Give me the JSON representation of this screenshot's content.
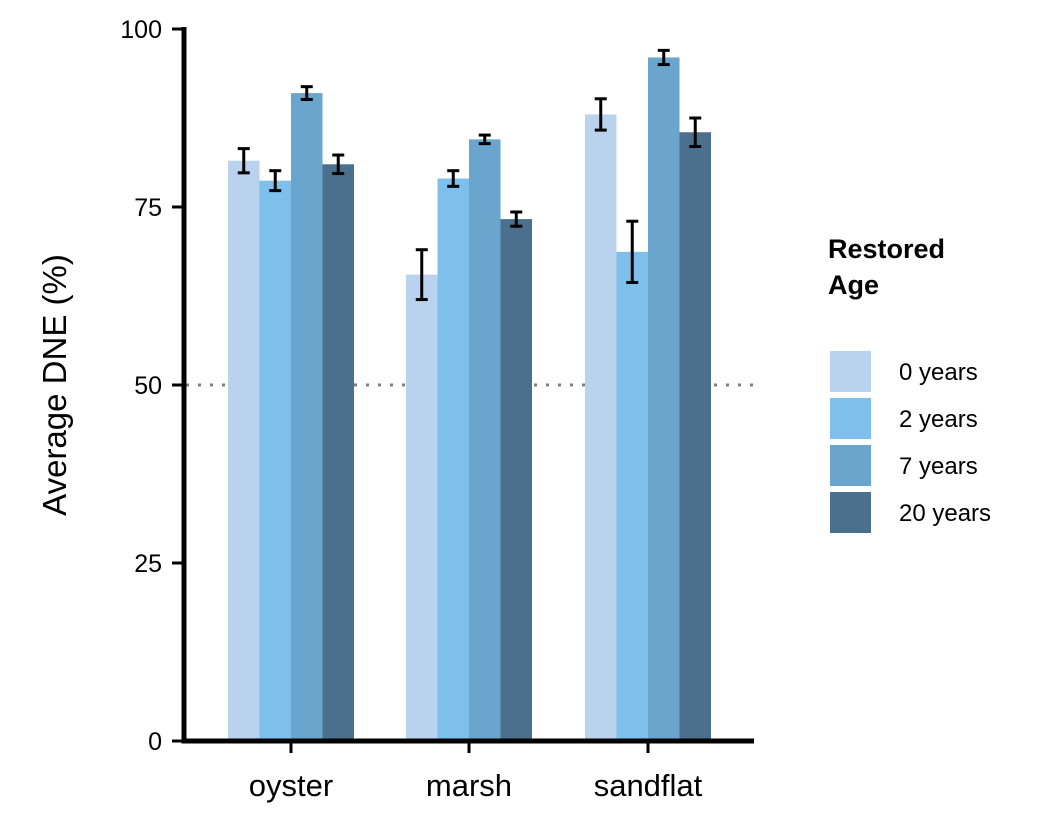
{
  "chart_data": {
    "type": "bar",
    "categories": [
      "oyster",
      "marsh",
      "sandflat"
    ],
    "series": [
      {
        "name": "0 years",
        "color": "#b9d2ee",
        "values": [
          81.5,
          65.5,
          88.0
        ],
        "err": [
          1.7,
          3.5,
          2.2
        ]
      },
      {
        "name": "2 years",
        "color": "#7ebfec",
        "values": [
          78.7,
          79.0,
          68.7
        ],
        "err": [
          1.4,
          1.1,
          4.3
        ]
      },
      {
        "name": "7 years",
        "color": "#6aa5cd",
        "values": [
          91.0,
          84.5,
          96.0
        ],
        "err": [
          0.9,
          0.6,
          1.0
        ]
      },
      {
        "name": "20 years",
        "color": "#4a708e",
        "values": [
          81.0,
          73.3,
          85.5
        ],
        "err": [
          1.3,
          1.0,
          2.0
        ]
      }
    ],
    "ylabel": "Average DNE (%)",
    "xlabel": "",
    "ylim": [
      0,
      100
    ],
    "yticks": [
      0,
      25,
      50,
      75,
      100
    ],
    "reference_line": 50,
    "grid": false,
    "legend": {
      "title_line1": "Restored",
      "title_line2": "Age",
      "placement": "right"
    }
  }
}
